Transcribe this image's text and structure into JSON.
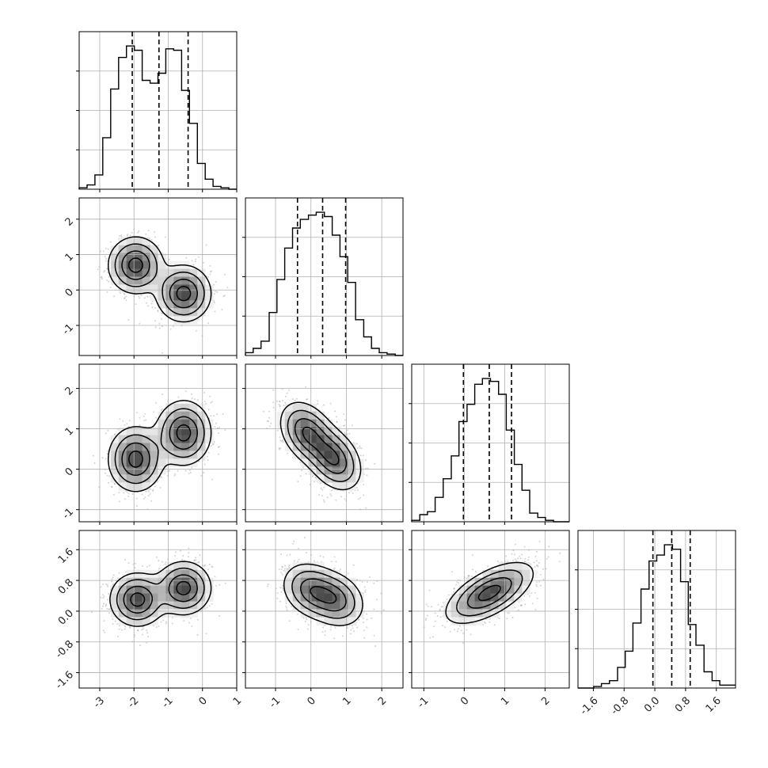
{
  "chart_data": {
    "type": "corner",
    "title": "",
    "n_params": 4,
    "params": [
      {
        "label": "",
        "range": [
          -3.6,
          1.0
        ],
        "ticks": [
          "-3",
          "-2",
          "-1",
          "0",
          "1"
        ],
        "tick_values": [
          -3,
          -2,
          -1,
          0,
          1
        ]
      },
      {
        "label": "",
        "range": [
          -1.85,
          2.6
        ],
        "ticks": [
          "-1",
          "0",
          "1",
          "2"
        ],
        "tick_values": [
          -1,
          0,
          1,
          2
        ]
      },
      {
        "label": "",
        "range": [
          -1.3,
          2.6
        ],
        "ticks": [
          "-1",
          "0",
          "1",
          "2"
        ],
        "tick_values": [
          -1,
          0,
          1,
          2
        ]
      },
      {
        "label": "",
        "range": [
          -2.0,
          2.1
        ],
        "ticks": [
          "-1.6",
          "-0.8",
          "0.0",
          "0.8",
          "1.6"
        ],
        "tick_values": [
          -1.6,
          -0.8,
          0.0,
          0.8,
          1.6
        ]
      }
    ],
    "histograms": [
      {
        "param": 0,
        "bin_edges": [
          -3.6,
          -3.37,
          -3.14,
          -2.91,
          -2.68,
          -2.45,
          -2.22,
          -1.99,
          -1.76,
          -1.53,
          -1.3,
          -1.07,
          -0.84,
          -0.61,
          -0.38,
          -0.15,
          0.08,
          0.31,
          0.54,
          0.77,
          1.0
        ],
        "counts": [
          0.01,
          0.03,
          0.1,
          0.36,
          0.7,
          0.92,
          1.0,
          0.97,
          0.76,
          0.74,
          0.81,
          0.98,
          0.97,
          0.69,
          0.46,
          0.18,
          0.07,
          0.02,
          0.01,
          0.0
        ],
        "quantiles": [
          -2.05,
          -1.27,
          -0.42
        ]
      },
      {
        "param": 1,
        "bin_edges": [
          -1.85,
          -1.63,
          -1.41,
          -1.18,
          -0.96,
          -0.74,
          -0.52,
          -0.3,
          -0.07,
          0.15,
          0.38,
          0.6,
          0.82,
          1.04,
          1.26,
          1.49,
          1.71,
          1.93,
          2.15,
          2.38,
          2.6
        ],
        "counts": [
          0.02,
          0.05,
          0.1,
          0.3,
          0.53,
          0.75,
          0.89,
          0.95,
          0.98,
          1.0,
          0.97,
          0.84,
          0.69,
          0.51,
          0.25,
          0.13,
          0.05,
          0.02,
          0.01,
          0.0
        ],
        "quantiles": [
          -0.38,
          0.33,
          0.98
        ]
      },
      {
        "param": 2,
        "bin_edges": [
          -1.3,
          -1.1,
          -0.91,
          -0.72,
          -0.52,
          -0.32,
          -0.13,
          0.07,
          0.26,
          0.45,
          0.65,
          0.85,
          1.04,
          1.24,
          1.43,
          1.62,
          1.82,
          2.01,
          2.21,
          2.4,
          2.6
        ],
        "counts": [
          0.01,
          0.05,
          0.07,
          0.17,
          0.3,
          0.46,
          0.7,
          0.82,
          0.96,
          1.0,
          0.98,
          0.89,
          0.64,
          0.4,
          0.22,
          0.06,
          0.03,
          0.01,
          0.0,
          0.0
        ],
        "quantiles": [
          -0.02,
          0.62,
          1.17
        ]
      },
      {
        "param": 3,
        "bin_edges": [
          -2.0,
          -1.79,
          -1.59,
          -1.39,
          -1.18,
          -0.97,
          -0.77,
          -0.57,
          -0.36,
          -0.15,
          0.05,
          0.25,
          0.46,
          0.67,
          0.87,
          1.07,
          1.28,
          1.49,
          1.69,
          1.89,
          2.1
        ],
        "counts": [
          0.0,
          0.0,
          0.01,
          0.03,
          0.05,
          0.14,
          0.25,
          0.44,
          0.67,
          0.86,
          0.9,
          0.97,
          0.94,
          0.72,
          0.43,
          0.29,
          0.11,
          0.05,
          0.02,
          0.02
        ],
        "quantiles": [
          -0.05,
          0.44,
          0.92
        ]
      }
    ],
    "pairs": [
      {
        "x": 0,
        "y": 1,
        "modes": [
          {
            "center": [
              -1.95,
              0.7
            ],
            "cov": [
              [
                0.16,
                0.0
              ],
              [
                0.0,
                0.16
              ]
            ]
          },
          {
            "center": [
              -0.55,
              -0.1
            ],
            "cov": [
              [
                0.16,
                0.0
              ],
              [
                0.0,
                0.16
              ]
            ]
          }
        ]
      },
      {
        "x": 0,
        "y": 2,
        "modes": [
          {
            "center": [
              -1.95,
              0.25
            ],
            "cov": [
              [
                0.16,
                0.0
              ],
              [
                0.0,
                0.16
              ]
            ]
          },
          {
            "center": [
              -0.55,
              0.9
            ],
            "cov": [
              [
                0.16,
                0.0
              ],
              [
                0.0,
                0.16
              ]
            ]
          }
        ]
      },
      {
        "x": 0,
        "y": 3,
        "modes": [
          {
            "center": [
              -1.9,
              0.3
            ],
            "cov": [
              [
                0.16,
                0.0
              ],
              [
                0.0,
                0.12
              ]
            ]
          },
          {
            "center": [
              -0.55,
              0.6
            ],
            "cov": [
              [
                0.16,
                0.0
              ],
              [
                0.0,
                0.12
              ]
            ]
          }
        ]
      },
      {
        "x": 1,
        "y": 2,
        "modes": [
          {
            "center": [
              -0.1,
              0.9
            ],
            "cov": [
              [
                0.15,
                -0.05
              ],
              [
                -0.05,
                0.15
              ]
            ]
          },
          {
            "center": [
              0.65,
              0.25
            ],
            "cov": [
              [
                0.15,
                -0.05
              ],
              [
                -0.05,
                0.15
              ]
            ]
          }
        ]
      },
      {
        "x": 1,
        "y": 3,
        "modes": [
          {
            "center": [
              0.0,
              0.55
            ],
            "cov": [
              [
                0.17,
                -0.03
              ],
              [
                -0.03,
                0.13
              ]
            ]
          },
          {
            "center": [
              0.7,
              0.3
            ],
            "cov": [
              [
                0.17,
                -0.03
              ],
              [
                -0.03,
                0.13
              ]
            ]
          }
        ]
      },
      {
        "x": 2,
        "y": 3,
        "modes": [
          {
            "center": [
              0.45,
              0.4
            ],
            "cov": [
              [
                0.26,
                0.12
              ],
              [
                0.12,
                0.15
              ]
            ]
          },
          {
            "center": [
              0.8,
              0.55
            ],
            "cov": [
              [
                0.26,
                0.12
              ],
              [
                0.12,
                0.15
              ]
            ]
          }
        ]
      }
    ],
    "contour_levels_sigma": [
      0.5,
      1.0,
      1.5,
      2.0
    ],
    "grid": true,
    "legend": "none"
  }
}
